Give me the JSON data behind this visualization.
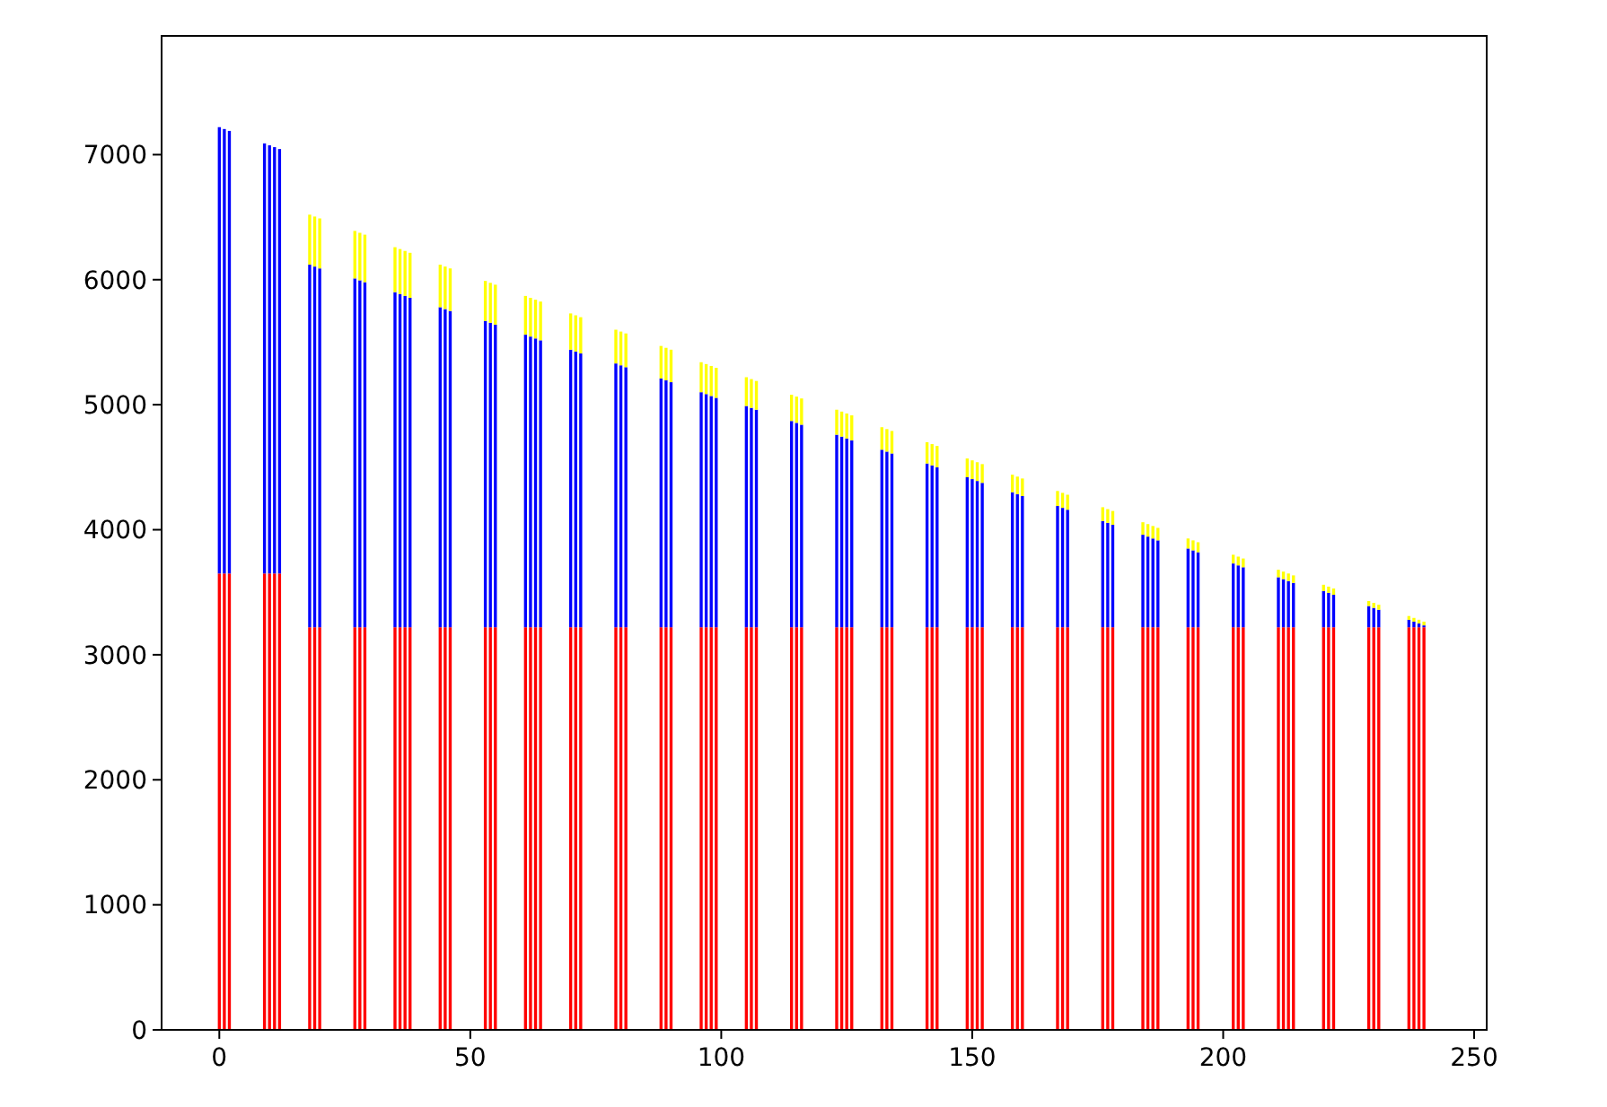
{
  "chart_data": {
    "type": "bar",
    "stacked": true,
    "x": [
      0,
      1,
      2,
      9,
      10,
      11,
      12,
      18,
      19,
      20,
      27,
      28,
      29,
      35,
      36,
      37,
      38,
      44,
      45,
      46,
      53,
      54,
      55,
      61,
      62,
      63,
      64,
      70,
      71,
      72,
      79,
      80,
      81,
      88,
      89,
      90,
      96,
      97,
      98,
      99,
      105,
      106,
      107,
      114,
      115,
      116,
      123,
      124,
      125,
      126,
      132,
      133,
      134,
      141,
      142,
      143,
      149,
      150,
      151,
      152,
      158,
      159,
      160,
      167,
      168,
      169,
      176,
      177,
      178,
      184,
      185,
      186,
      187,
      193,
      194,
      195,
      202,
      203,
      204,
      211,
      212,
      213,
      214,
      220,
      221,
      222,
      229,
      230,
      231,
      237,
      238,
      239,
      240
    ],
    "series": [
      {
        "color": "#ff0000",
        "values": [
          3650,
          3650,
          3650,
          3650,
          3650,
          3650,
          3650,
          3220,
          3220,
          3220,
          3220,
          3220,
          3220,
          3220,
          3220,
          3220,
          3220,
          3220,
          3220,
          3220,
          3220,
          3220,
          3220,
          3220,
          3220,
          3220,
          3220,
          3220,
          3220,
          3220,
          3220,
          3220,
          3220,
          3220,
          3220,
          3220,
          3220,
          3220,
          3220,
          3220,
          3220,
          3220,
          3220,
          3220,
          3220,
          3220,
          3220,
          3220,
          3220,
          3220,
          3220,
          3220,
          3220,
          3220,
          3220,
          3220,
          3220,
          3220,
          3220,
          3220,
          3220,
          3220,
          3220,
          3220,
          3220,
          3220,
          3220,
          3220,
          3220,
          3220,
          3220,
          3220,
          3220,
          3220,
          3220,
          3220,
          3220,
          3220,
          3220,
          3220,
          3220,
          3220,
          3220,
          3220,
          3220,
          3220,
          3220,
          3220,
          3220,
          3220,
          3220,
          3220,
          3220
        ]
      },
      {
        "color": "#0000ff",
        "values": [
          3570,
          3555,
          3540,
          3440,
          3425,
          3410,
          3395,
          2900,
          2885,
          2870,
          2790,
          2775,
          2760,
          2680,
          2665,
          2650,
          2635,
          2560,
          2545,
          2530,
          2450,
          2435,
          2420,
          2340,
          2325,
          2310,
          2295,
          2220,
          2205,
          2190,
          2110,
          2095,
          2080,
          1990,
          1975,
          1960,
          1880,
          1865,
          1850,
          1835,
          1770,
          1755,
          1740,
          1650,
          1635,
          1620,
          1540,
          1525,
          1510,
          1495,
          1420,
          1405,
          1390,
          1310,
          1295,
          1280,
          1200,
          1185,
          1170,
          1155,
          1080,
          1065,
          1050,
          970,
          955,
          940,
          850,
          835,
          820,
          740,
          725,
          710,
          695,
          630,
          615,
          600,
          510,
          495,
          480,
          400,
          385,
          370,
          355,
          290,
          275,
          260,
          170,
          155,
          140,
          60,
          45,
          30,
          15
        ]
      },
      {
        "color": "#ffff00",
        "values": [
          0,
          0,
          0,
          0,
          0,
          0,
          0,
          400,
          400,
          400,
          380,
          380,
          380,
          360,
          360,
          360,
          360,
          340,
          340,
          340,
          320,
          320,
          320,
          310,
          310,
          310,
          310,
          290,
          290,
          290,
          270,
          270,
          270,
          260,
          260,
          260,
          240,
          240,
          240,
          240,
          230,
          230,
          230,
          210,
          210,
          210,
          200,
          200,
          200,
          200,
          180,
          180,
          180,
          170,
          170,
          170,
          150,
          150,
          150,
          150,
          140,
          140,
          140,
          120,
          120,
          120,
          110,
          110,
          110,
          100,
          100,
          100,
          100,
          80,
          80,
          80,
          70,
          70,
          70,
          60,
          60,
          60,
          60,
          50,
          50,
          50,
          40,
          40,
          40,
          30,
          30,
          30,
          30
        ]
      }
    ],
    "xlim": [
      -11.5,
      252.5
    ],
    "xticks": [
      0,
      50,
      100,
      150,
      200,
      250
    ],
    "ylim": [
      0,
      7950
    ],
    "yticks": [
      0,
      1000,
      2000,
      3000,
      4000,
      5000,
      6000,
      7000
    ]
  }
}
